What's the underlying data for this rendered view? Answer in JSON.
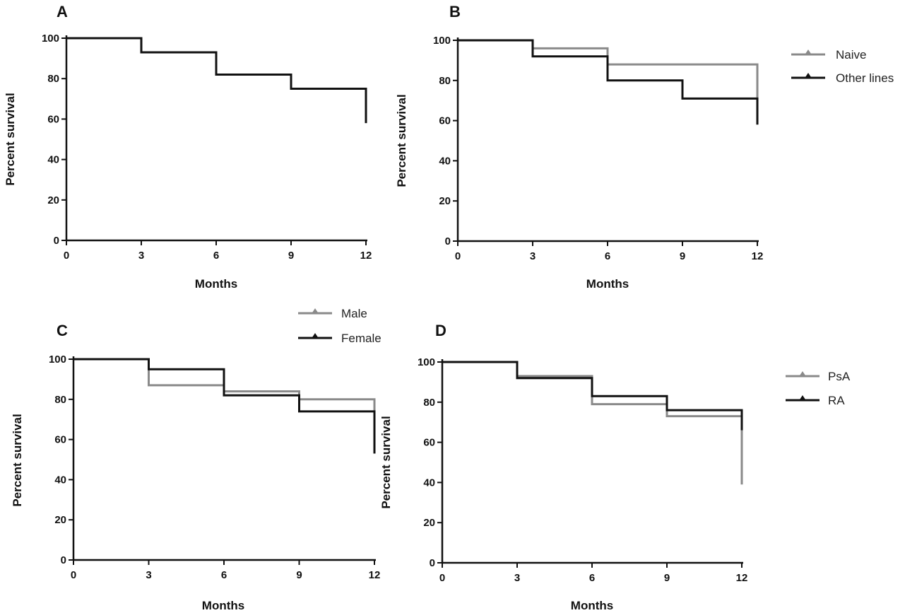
{
  "chart_data": [
    {
      "panel": "A",
      "type": "line",
      "step": true,
      "xlabel": "Months",
      "ylabel": "Percent survival",
      "xticks": [
        0,
        3,
        6,
        9,
        12
      ],
      "yticks": [
        0,
        20,
        40,
        60,
        80,
        100
      ],
      "xlim": [
        0,
        12
      ],
      "ylim": [
        0,
        100
      ],
      "legend_position": "none",
      "series": [
        {
          "name": "",
          "color": "#111111",
          "x": [
            0,
            3,
            6,
            9,
            12
          ],
          "y": [
            100,
            93,
            82,
            75,
            75
          ],
          "drop_to": 58
        }
      ]
    },
    {
      "panel": "B",
      "type": "line",
      "step": true,
      "xlabel": "Months",
      "ylabel": "Percent survival",
      "xticks": [
        0,
        3,
        6,
        9,
        12
      ],
      "yticks": [
        0,
        20,
        40,
        60,
        80,
        100
      ],
      "xlim": [
        0,
        12
      ],
      "ylim": [
        0,
        100
      ],
      "legend_position": "right-top",
      "series": [
        {
          "name": "Naive",
          "color": "#8a8a8a",
          "x": [
            0,
            3,
            6,
            9,
            12
          ],
          "y": [
            100,
            96,
            88,
            88,
            88
          ],
          "drop_to": 64
        },
        {
          "name": "Other lines",
          "color": "#111111",
          "x": [
            0,
            3,
            6,
            9,
            12
          ],
          "y": [
            100,
            92,
            80,
            71,
            71
          ],
          "drop_to": 58
        }
      ]
    },
    {
      "panel": "C",
      "type": "line",
      "step": true,
      "xlabel": "Months",
      "ylabel": "Percent survival",
      "xticks": [
        0,
        3,
        6,
        9,
        12
      ],
      "yticks": [
        0,
        20,
        40,
        60,
        80,
        100
      ],
      "xlim": [
        0,
        12
      ],
      "ylim": [
        0,
        100
      ],
      "legend_position": "top-right",
      "series": [
        {
          "name": "Male",
          "color": "#8a8a8a",
          "x": [
            0,
            3,
            6,
            9,
            12
          ],
          "y": [
            100,
            87,
            84,
            80,
            80
          ],
          "drop_to": 65
        },
        {
          "name": "Female",
          "color": "#111111",
          "x": [
            0,
            3,
            6,
            9,
            12
          ],
          "y": [
            100,
            95,
            82,
            74,
            74
          ],
          "drop_to": 53
        }
      ]
    },
    {
      "panel": "D",
      "type": "line",
      "step": true,
      "xlabel": "Months",
      "ylabel": "Percent survival",
      "xticks": [
        0,
        3,
        6,
        9,
        12
      ],
      "yticks": [
        0,
        20,
        40,
        60,
        80,
        100
      ],
      "xlim": [
        0,
        12
      ],
      "ylim": [
        0,
        100
      ],
      "legend_position": "right-top",
      "series": [
        {
          "name": "PsA",
          "color": "#8a8a8a",
          "x": [
            0,
            3,
            6,
            9,
            12
          ],
          "y": [
            100,
            93,
            79,
            73,
            73
          ],
          "drop_to": 39
        },
        {
          "name": "RA",
          "color": "#111111",
          "x": [
            0,
            3,
            6,
            9,
            12
          ],
          "y": [
            100,
            92,
            83,
            76,
            76
          ],
          "drop_to": 66
        }
      ]
    }
  ]
}
